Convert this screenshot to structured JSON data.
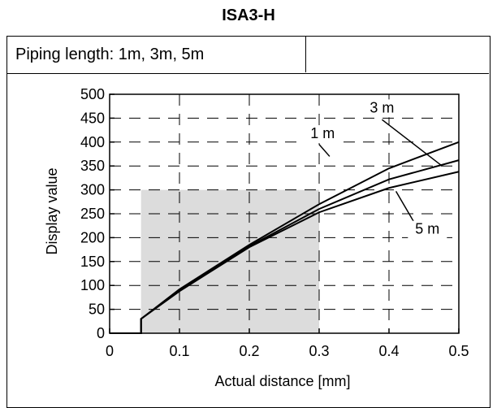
{
  "title": "ISA3-H",
  "header": {
    "label": "Piping length: 1m, 3m, 5m",
    "blank": ""
  },
  "chart_data": {
    "type": "line",
    "xlabel": "Actual distance [mm]",
    "ylabel": "Display value",
    "xlim": [
      0,
      0.5
    ],
    "ylim": [
      0,
      500
    ],
    "xticks": [
      "0",
      "0.1",
      "0.2",
      "0.3",
      "0.4",
      "0.5"
    ],
    "yticks": [
      "0",
      "50",
      "100",
      "150",
      "200",
      "250",
      "300",
      "350",
      "400",
      "450",
      "500"
    ],
    "xtick_values": [
      0,
      0.1,
      0.2,
      0.3,
      0.4,
      0.5
    ],
    "ytick_values": [
      0,
      50,
      100,
      150,
      200,
      250,
      300,
      350,
      400,
      450,
      500
    ],
    "grid": true,
    "shaded_region": {
      "x": [
        0.045,
        0.3
      ],
      "y": [
        0,
        300
      ]
    },
    "series": [
      {
        "name": "1 m",
        "x": [
          0,
          0.045,
          0.045,
          0.1,
          0.2,
          0.3,
          0.4,
          0.5
        ],
        "y": [
          0,
          0,
          30,
          92,
          185,
          270,
          345,
          400
        ]
      },
      {
        "name": "3 m",
        "x": [
          0,
          0.045,
          0.045,
          0.1,
          0.2,
          0.3,
          0.4,
          0.5
        ],
        "y": [
          0,
          0,
          30,
          90,
          182,
          260,
          322,
          362
        ]
      },
      {
        "name": "5 m",
        "x": [
          0,
          0.045,
          0.045,
          0.1,
          0.2,
          0.3,
          0.4,
          0.5
        ],
        "y": [
          0,
          0,
          30,
          88,
          180,
          253,
          304,
          338
        ]
      }
    ],
    "labels": [
      {
        "text": "3 m",
        "label_at": [
          0.39,
          462
        ],
        "pointer": [
          [
            0.39,
            447
          ],
          [
            0.476,
            350
          ]
        ]
      },
      {
        "text": "1 m",
        "label_at": [
          0.305,
          408
        ],
        "pointer": [
          [
            0.3,
            395
          ],
          [
            0.315,
            370
          ]
        ]
      },
      {
        "text": "5 m",
        "label_at": [
          0.455,
          208
        ],
        "pointer": [
          [
            0.44,
            222
          ],
          [
            0.41,
            297
          ]
        ]
      }
    ]
  }
}
